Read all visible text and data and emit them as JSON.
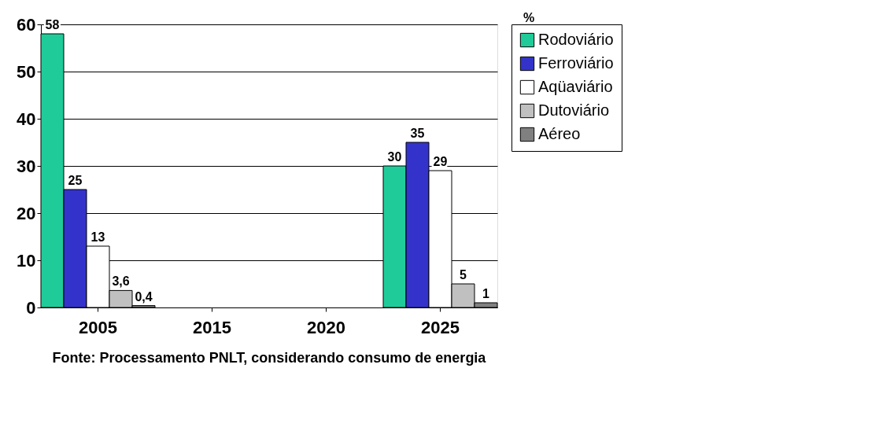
{
  "chart_data": {
    "type": "bar",
    "categories": [
      "2005",
      "2015",
      "2020",
      "2025"
    ],
    "series": [
      {
        "name": "Rodoviário",
        "color": "#1fcc99",
        "values": [
          58,
          null,
          null,
          30
        ],
        "value_labels": [
          "58",
          null,
          null,
          "30"
        ]
      },
      {
        "name": "Ferroviário",
        "color": "#3333cc",
        "values": [
          25,
          null,
          null,
          35
        ],
        "value_labels": [
          "25",
          null,
          null,
          "35"
        ]
      },
      {
        "name": "Aqüaviário",
        "color": "#ffffff",
        "values": [
          13,
          null,
          null,
          29
        ],
        "value_labels": [
          "13",
          null,
          null,
          "29"
        ]
      },
      {
        "name": "Dutoviário",
        "color": "#c0c0c0",
        "values": [
          3.6,
          null,
          null,
          5
        ],
        "value_labels": [
          "3,6",
          null,
          null,
          "5"
        ]
      },
      {
        "name": "Aéreo",
        "color": "#808080",
        "values": [
          0.4,
          null,
          null,
          1
        ],
        "value_labels": [
          "0,4",
          null,
          null,
          "1"
        ]
      }
    ],
    "ylim": [
      0,
      60
    ],
    "yticks": [
      0,
      10,
      20,
      30,
      40,
      50,
      60
    ],
    "grid": "y",
    "legend": "right",
    "annotations": [
      "%",
      "Fonte: Processamento PNLT, considerando consumo de energia"
    ]
  }
}
